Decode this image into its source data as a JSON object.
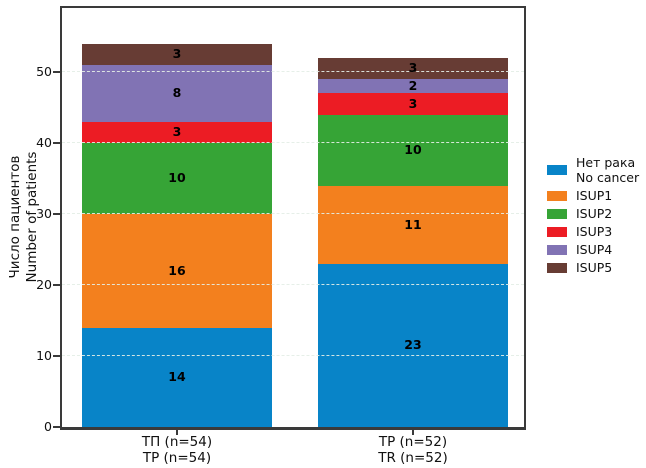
{
  "chart_data": {
    "type": "bar",
    "stacked": true,
    "orientation": "vertical",
    "categories": [
      {
        "lines": [
          "ТП (n=54)",
          "TP (n=54)"
        ]
      },
      {
        "lines": [
          "ТР (n=52)",
          "TR (n=52)"
        ]
      }
    ],
    "series": [
      {
        "name_lines": [
          "Нет рака",
          "No cancer"
        ],
        "color": "#0884c8",
        "values": [
          14,
          23
        ]
      },
      {
        "name_lines": [
          "ISUP1"
        ],
        "color": "#f3801e",
        "values": [
          16,
          11
        ]
      },
      {
        "name_lines": [
          "ISUP2"
        ],
        "color": "#36a436",
        "values": [
          10,
          10
        ]
      },
      {
        "name_lines": [
          "ISUP3"
        ],
        "color": "#ec1c24",
        "values": [
          3,
          3
        ]
      },
      {
        "name_lines": [
          "ISUP4"
        ],
        "color": "#8173b4",
        "values": [
          8,
          2
        ]
      },
      {
        "name_lines": [
          "ISUP5"
        ],
        "color": "#673c34",
        "values": [
          3,
          3
        ]
      }
    ],
    "totals": [
      54,
      52
    ],
    "ylabel_lines": [
      "Число пациентов",
      "Number of patients"
    ],
    "yticks": [
      0,
      10,
      20,
      30,
      40,
      50
    ],
    "ylim": [
      0,
      59
    ],
    "grid": "horizontal dashed lines at y ticks, drawn over bars",
    "legend_position": "outside center-right, no frame",
    "bar_value_labels": "black bold number centered in each segment"
  },
  "colors": {
    "axis_spine": "#3a3a3a",
    "gridline": "rgba(228,238,230,0.92)",
    "label_text": "#000000"
  }
}
